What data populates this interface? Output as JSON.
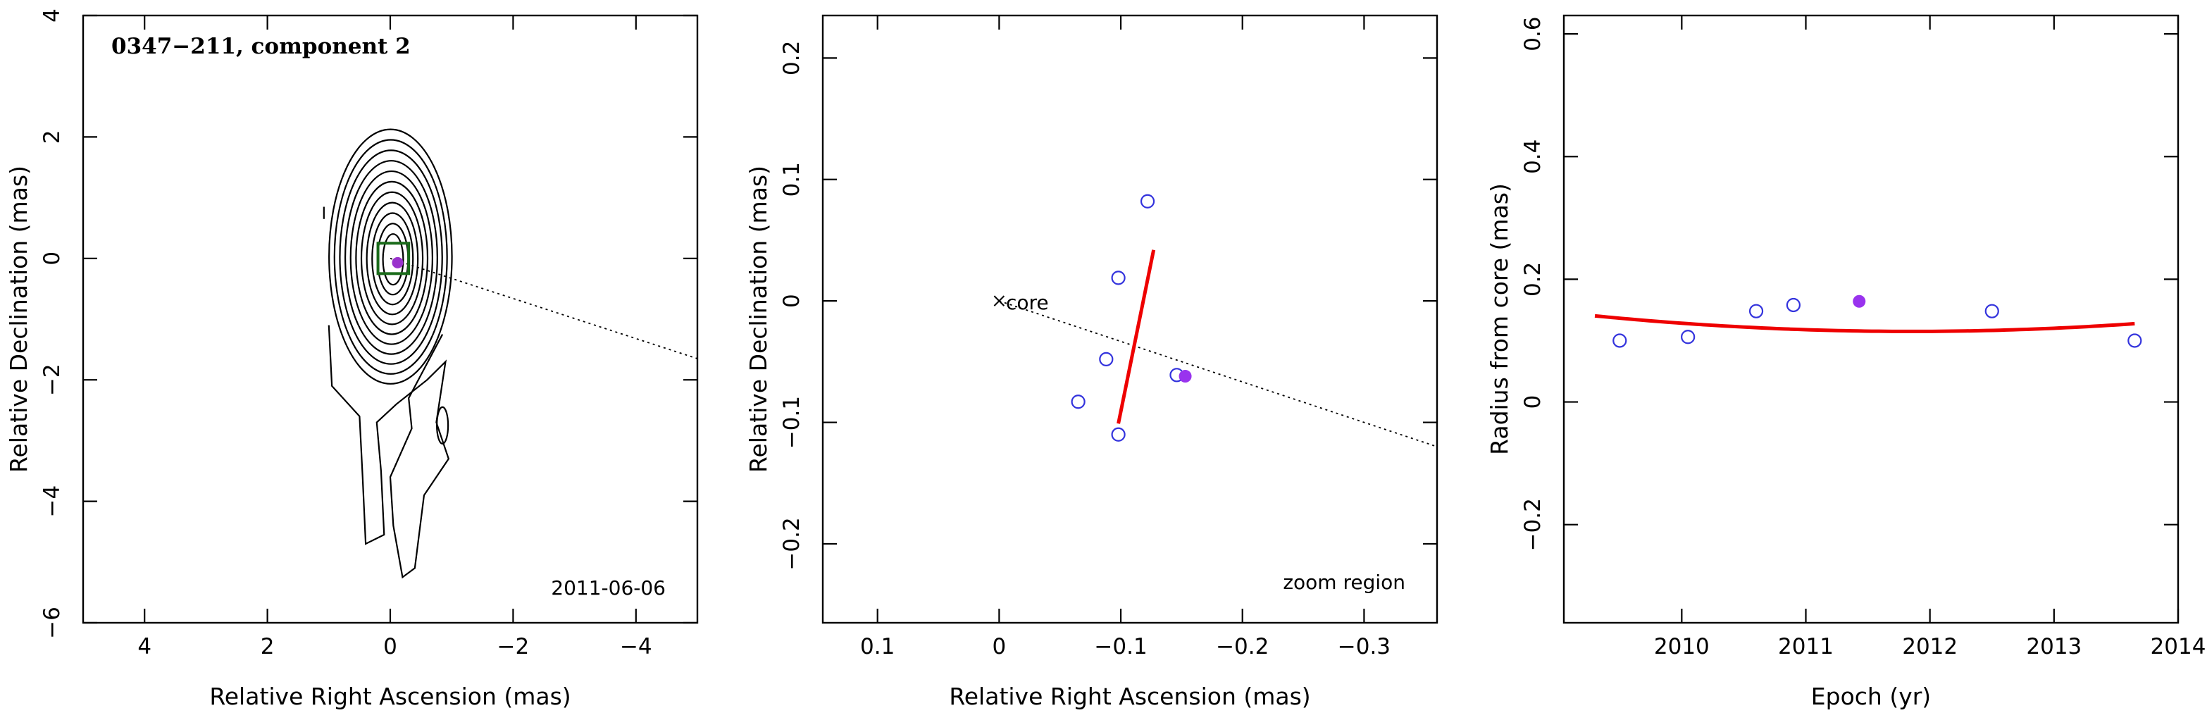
{
  "chart_data": [
    {
      "type": "contour",
      "title": "0347−211, component 2",
      "annotation": "2011-06-06",
      "xlabel": "Relative Right Ascension (mas)",
      "ylabel": "Relative Declination (mas)",
      "xlim": [
        5,
        -5
      ],
      "ylim": [
        -6,
        4
      ],
      "xticks": [
        4,
        2,
        0,
        -2,
        -4
      ],
      "xtick_labels": [
        "4",
        "2",
        "0",
        "−2",
        "−4"
      ],
      "yticks": [
        -6,
        -4,
        -2,
        0,
        2,
        4
      ],
      "ytick_labels": [
        "−6",
        "−4",
        "−2",
        "0",
        "2",
        "4"
      ],
      "contour_center": [
        -0.05,
        -0.05
      ],
      "n_contours": 11,
      "component_position": [
        -0.12,
        -0.07
      ],
      "zoom_box": {
        "x": [
          0.2,
          -0.3
        ],
        "y": [
          0.25,
          -0.25
        ]
      },
      "direction_line": {
        "from": [
          0,
          0
        ],
        "to": [
          -5,
          -1.65
        ]
      },
      "colors": {
        "component": "#9933cc",
        "zoom_box": "#1a6b1a"
      }
    },
    {
      "type": "scatter",
      "annotation": "zoom region",
      "marker_label": "core",
      "xlabel": "Relative Right Ascension (mas)",
      "ylabel": "Relative Declination (mas)",
      "xlim": [
        0.145,
        -0.36
      ],
      "ylim": [
        -0.265,
        0.235
      ],
      "xticks": [
        0.1,
        0,
        -0.1,
        -0.2,
        -0.3
      ],
      "xtick_labels": [
        "0.1",
        "0",
        "−0.1",
        "−0.2",
        "−0.3"
      ],
      "yticks": [
        -0.2,
        -0.1,
        0,
        0.1,
        0.2
      ],
      "ytick_labels": [
        "−0.2",
        "−0.1",
        "0",
        "0.1",
        "0.2"
      ],
      "points": [
        {
          "x": -0.122,
          "y": 0.082
        },
        {
          "x": -0.098,
          "y": 0.019
        },
        {
          "x": -0.088,
          "y": -0.048
        },
        {
          "x": -0.065,
          "y": -0.083
        },
        {
          "x": -0.098,
          "y": -0.11
        },
        {
          "x": -0.146,
          "y": -0.061
        }
      ],
      "highlight_point": {
        "x": -0.153,
        "y": -0.062
      },
      "fit_line": {
        "from": [
          -0.098,
          -0.101
        ],
        "to": [
          -0.127,
          0.042
        ]
      },
      "direction_line": {
        "from": [
          0,
          0
        ],
        "to": [
          -0.36,
          -0.12
        ]
      },
      "colors": {
        "points": "#3333dd",
        "highlight": "#9933ee",
        "fit": "#ee0000"
      }
    },
    {
      "type": "scatter",
      "xlabel": "Epoch (yr)",
      "ylabel": "Radius from core (mas)",
      "xlim": [
        2009.05,
        2014.0
      ],
      "ylim": [
        -0.36,
        0.63
      ],
      "xticks": [
        2010,
        2011,
        2012,
        2013,
        2014
      ],
      "xtick_labels": [
        "2010",
        "2011",
        "2012",
        "2013",
        "2014"
      ],
      "yticks": [
        -0.2,
        0,
        0.2,
        0.4,
        0.6
      ],
      "ytick_labels": [
        "−0.2",
        "0",
        "0.2",
        "0.4",
        "0.6"
      ],
      "points": [
        {
          "x": 2009.5,
          "y": 0.1
        },
        {
          "x": 2010.05,
          "y": 0.106
        },
        {
          "x": 2010.6,
          "y": 0.148
        },
        {
          "x": 2010.9,
          "y": 0.158
        },
        {
          "x": 2012.5,
          "y": 0.148
        },
        {
          "x": 2013.65,
          "y": 0.1
        }
      ],
      "highlight_point": {
        "x": 2011.43,
        "y": 0.164
      },
      "fit_curve": {
        "x_range": [
          2009.3,
          2013.65
        ],
        "vertex_x": 2011.85,
        "vertex_y": 0.115,
        "curvature": 0.0039
      },
      "colors": {
        "points": "#3333dd",
        "highlight": "#9933ee",
        "fit": "#ee0000"
      }
    }
  ]
}
